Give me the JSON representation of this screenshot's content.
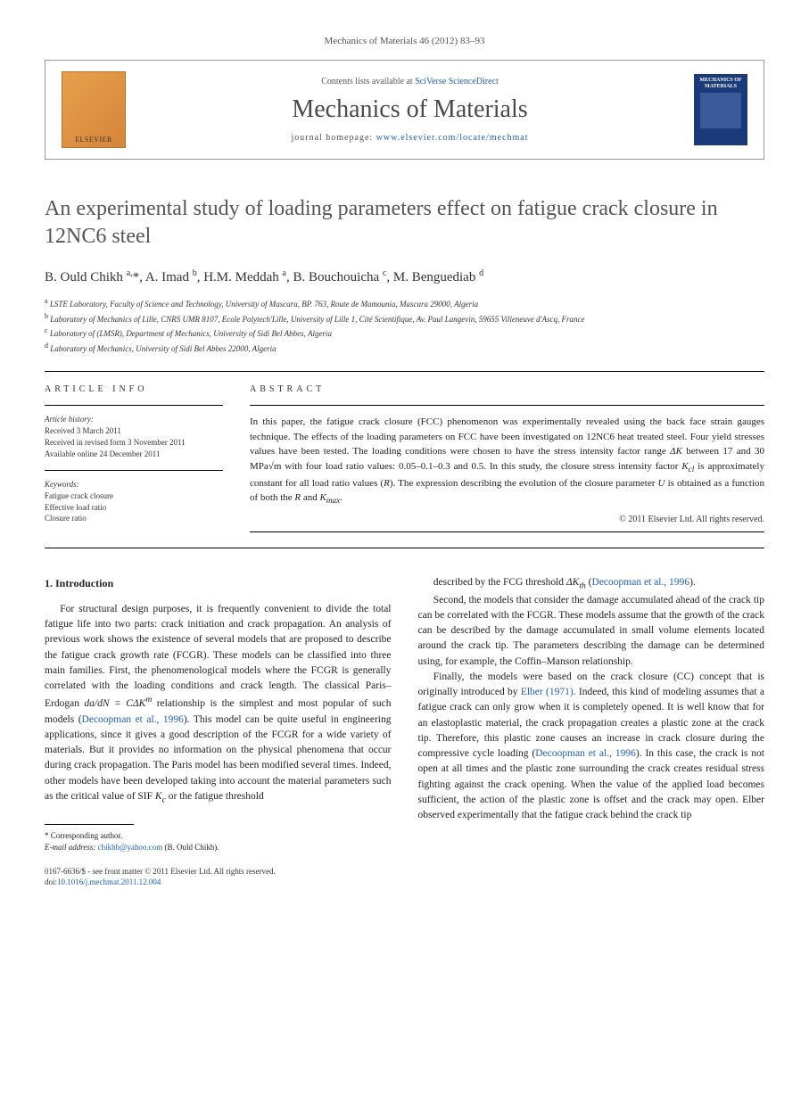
{
  "journal_ref": "Mechanics of Materials 46 (2012) 83–93",
  "header": {
    "elsevier_label": "ELSEVIER",
    "contents_prefix": "Contents lists available at ",
    "contents_link": "SciVerse ScienceDirect",
    "journal_name": "Mechanics of Materials",
    "homepage_prefix": "journal homepage: ",
    "homepage_link": "www.elsevier.com/locate/mechmat",
    "cover_title": "MECHANICS OF MATERIALS"
  },
  "title": "An experimental study of loading parameters effect on fatigue crack closure in 12NC6 steel",
  "authors_html": "B. Ould Chikh <sup>a,</sup>*, A. Imad <sup>b</sup>, H.M. Meddah <sup>a</sup>, B. Bouchouicha <sup>c</sup>, M. Benguediab <sup>d</sup>",
  "affiliations": [
    "<sup>a</sup> LSTE Laboratory, Faculty of Science and Technology, University of Mascara, BP. 763, Route de Mamounia, Mascara 29000, Algeria",
    "<sup>b</sup> Laboratory of Mechanics of Lille, CNRS UMR 8107, Ecole Polytech'Lille, University of Lille 1, Cité Scientifique, Av. Paul Langevin, 59655 Villeneuve d'Ascq, France",
    "<sup>c</sup> Laboratory of (LMSR), Department of Mechanics, University of Sidi Bel Abbes, Algeria",
    "<sup>d</sup> Laboratory of Mechanics, University of Sidi Bel Abbes 22000, Algeria"
  ],
  "article_info": {
    "heading": "ARTICLE INFO",
    "history_heading": "Article history:",
    "history": [
      "Received 3 March 2011",
      "Received in revised form 3 November 2011",
      "Available online 24 December 2011"
    ],
    "keywords_heading": "Keywords:",
    "keywords": [
      "Fatigue crack closure",
      "Effective load ratio",
      "Closure ratio"
    ]
  },
  "abstract": {
    "heading": "ABSTRACT",
    "text": "In this paper, the fatigue crack closure (FCC) phenomenon was experimentally revealed using the back face strain gauges technique. The effects of the loading parameters on FCC have been investigated on 12NC6 heat treated steel. Four yield stresses values have been tested. The loading conditions were chosen to have the stress intensity factor range <i>ΔK</i> between 17 and 30 MPa√m with four load ratio values: 0.05–0.1–0.3 and 0.5. In this study, the closure stress intensity factor <i>K<sub>cl</sub></i> is approximately constant for all load ratio values (<i>R</i>). The expression describing the evolution of the closure parameter <i>U</i> is obtained as a function of both the <i>R</i> and <i>K<sub>max</sub></i>.",
    "copyright": "© 2011 Elsevier Ltd. All rights reserved."
  },
  "section1": {
    "heading": "1. Introduction",
    "col1_p1": "For structural design purposes, it is frequently convenient to divide the total fatigue life into two parts: crack initiation and crack propagation. An analysis of previous work shows the existence of several models that are proposed to describe the fatigue crack growth rate (FCGR). These models can be classified into three main families. First, the phenomenological models where the FCGR is generally correlated with the loading conditions and crack length. The classical Paris–Erdogan <i>da/dN = CΔK<sup>m</sup></i> relationship is the simplest and most popular of such models (<span class=\"ref-link\">Decoopman et al., 1996</span>). This model can be quite useful in engineering applications, since it gives a good description of the FCGR for a wide variety of materials. But it provides no information on the physical phenomena that occur during crack propagation. The Paris model has been modified several times. Indeed, other models have been developed taking into account the material parameters such as the critical value of SIF <i>K<sub>c</sub></i> or the fatigue threshold",
    "col2_p1": "described by the FCG threshold <i>ΔK<sub>th</sub></i> (<span class=\"ref-link\">Decoopman et al., 1996</span>).",
    "col2_p2": "Second, the models that consider the damage accumulated ahead of the crack tip can be correlated with the FCGR. These models assume that the growth of the crack can be described by the damage accumulated in small volume elements located around the crack tip. The parameters describing the damage can be determined using, for example, the Coffin–Manson relationship.",
    "col2_p3": "Finally, the models were based on the crack closure (CC) concept that is originally introduced by <span class=\"ref-link\">Elber (1971)</span>. Indeed, this kind of modeling assumes that a fatigue crack can only grow when it is completely opened. It is well know that for an elastoplastic material, the crack propagation creates a plastic zone at the crack tip. Therefore, this plastic zone causes an increase in crack closure during the compressive cycle loading (<span class=\"ref-link\">Decoopman et al., 1996</span>). In this case, the crack is not open at all times and the plastic zone surrounding the crack creates residual stress fighting against the crack opening. When the value of the applied load becomes sufficient, the action of the plastic zone is offset and the crack may open. Elber observed experimentally that the fatigue crack behind the crack tip"
  },
  "footnote": {
    "corr": "* Corresponding author.",
    "email_label": "E-mail address:",
    "email": "chikhb@yahoo.com",
    "email_name": "(B. Ould Chikh)."
  },
  "bottom": {
    "line1": "0167-6636/$ - see front matter © 2011 Elsevier Ltd. All rights reserved.",
    "doi_label": "doi:",
    "doi": "10.1016/j.mechmat.2011.12.004"
  }
}
